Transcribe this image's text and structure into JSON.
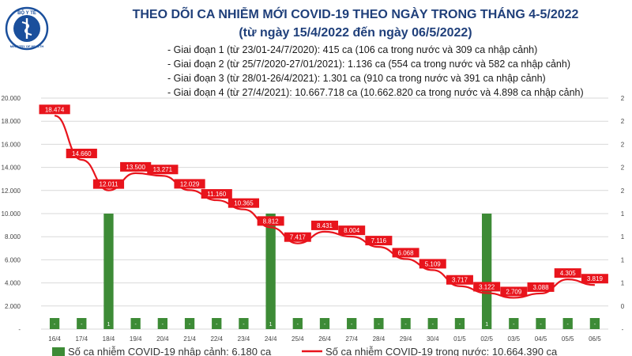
{
  "header": {
    "title": "THEO DÕI CA NHIỄM MỚI COVID-19 THEO NGÀY TRONG THÁNG 4-5/2022",
    "subtitle": "(từ ngày 15/4/2022 đến ngày 06/5/2022)",
    "notes": [
      "- Giai đoạn 1 (từ 23/01-24/7/2020): 415 ca (106 ca trong nước và 309 ca nhập cảnh)",
      "- Giai đoạn 2 (từ 25/7/2020-27/01/2021): 1.136 ca (554 ca trong nước và 582 ca nhập cảnh)",
      "- Giai đoạn 3 (từ 28/01-26/4/2021): 1.301 ca (910 ca trong nước và 391 ca nhập cảnh)",
      "- Giai đoạn 4 (từ 27/4/2021): 10.667.718 ca (10.662.820 ca trong nước và 4.898 ca nhập cảnh)"
    ]
  },
  "logo": {
    "text_top": "BỘ Y TẾ",
    "text_bottom": "MINISTRY OF HEALTH"
  },
  "colors": {
    "bar": "#3d8b36",
    "line": "#e8141c",
    "label_bg": "#e8141c",
    "title": "#1f3f7a",
    "logo": "#1a4f9c"
  },
  "chart_data": {
    "type": "bar",
    "categories": [
      "16/4",
      "17/4",
      "18/4",
      "19/4",
      "20/4",
      "21/4",
      "22/4",
      "23/4",
      "24/4",
      "25/4",
      "26/4",
      "27/4",
      "28/4",
      "29/4",
      "30/4",
      "01/5",
      "02/5",
      "03/5",
      "04/5",
      "05/5",
      "06/5"
    ],
    "series": [
      {
        "name": "Số ca nhiễm COVID-19 nhập cảnh: 6.180 ca",
        "kind": "bar",
        "axis": "right",
        "values": [
          0,
          0,
          1,
          0,
          0,
          0,
          0,
          0,
          1,
          0,
          0,
          0,
          0,
          0,
          0,
          0,
          1,
          0,
          0,
          0,
          0
        ],
        "labels": [
          "-",
          "-",
          "1",
          "-",
          "-",
          "-",
          "-",
          "-",
          "1",
          "-",
          "-",
          "-",
          "-",
          "-",
          "-",
          "-",
          "1",
          "-",
          "-",
          "-",
          "-"
        ]
      },
      {
        "name": "Số ca nhiễm COVID-19 trong nước: 10.664.390 ca",
        "kind": "line",
        "axis": "left",
        "values": [
          18474,
          14660,
          12011,
          13500,
          13271,
          12029,
          11160,
          10365,
          8812,
          7417,
          8431,
          8004,
          7116,
          6068,
          5109,
          3717,
          3122,
          2709,
          3088,
          4305,
          3819
        ],
        "labels": [
          "18.474",
          "14.660",
          "12.011",
          "13.500",
          "13.271",
          "12.029",
          "11.160",
          "10.365",
          "8.812",
          "7.417",
          "8.431",
          "8.004",
          "7.116",
          "6.068",
          "5.109",
          "3.717",
          "3.122",
          "2.709",
          "3.088",
          "4.305",
          "3.819"
        ]
      }
    ],
    "y_left": {
      "min": 0,
      "max": 20000,
      "ticks": [
        "-",
        "2.000",
        "4.000",
        "6.000",
        "8.000",
        "10.000",
        "12.000",
        "14.000",
        "16.000",
        "18.000",
        "20.000"
      ]
    },
    "y_right": {
      "min": 0,
      "max": 2,
      "ticks": [
        "-",
        "0",
        "1",
        "1",
        "1",
        "1",
        "2",
        "2",
        "2",
        "2",
        "2"
      ]
    },
    "grid": true,
    "legend": "bottom"
  }
}
